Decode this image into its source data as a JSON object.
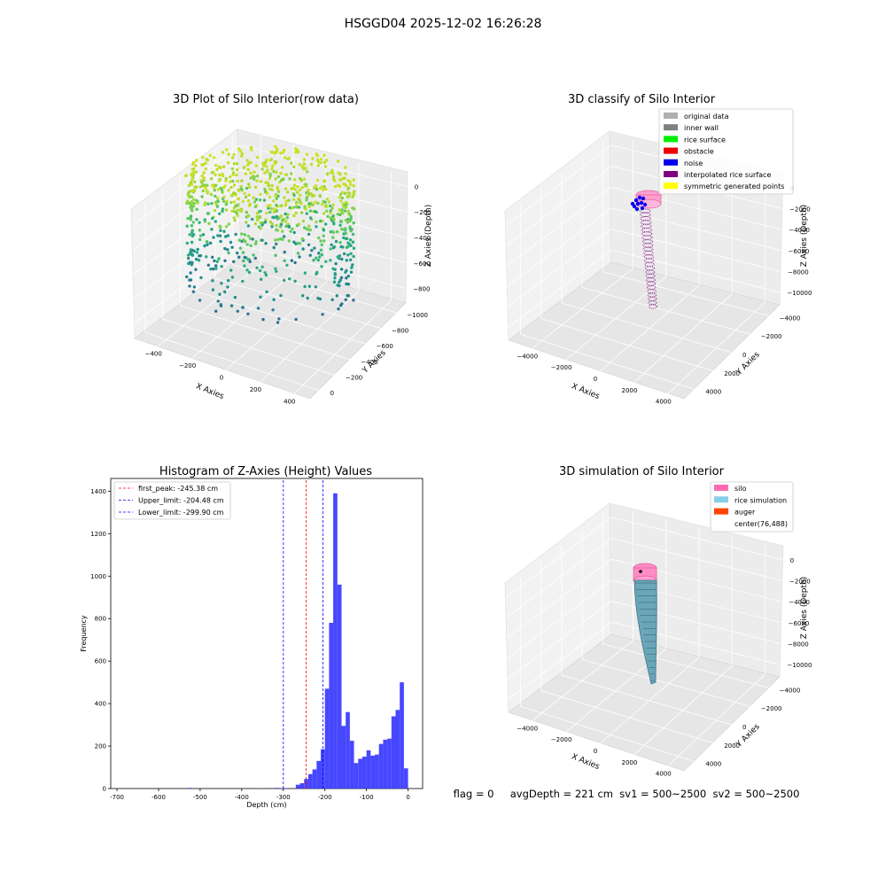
{
  "figure": {
    "suptitle": "HSGGD04 2025-12-02 16:26:28",
    "status_line": "flag = 0     avgDepth = 221 cm  sv1 = 500~2500  sv2 = 500~2500"
  },
  "chart_data": [
    {
      "type": "scatter",
      "projection": "3d",
      "title": "3D Plot of Silo Interior(row data)",
      "xlabel": "X Axies",
      "ylabel": "Y Axies",
      "zlabel": "Z Axies (Depth)",
      "x_ticks": [
        "−400",
        "−200",
        "0",
        "200",
        "400"
      ],
      "y_ticks": [
        "0",
        "−200",
        "−400",
        "−600",
        "−800",
        "−1000"
      ],
      "z_ticks": [
        "0",
        "−200",
        "−400",
        "−600",
        "−800"
      ],
      "xlim": [
        -500,
        500
      ],
      "ylim": [
        -1000,
        100
      ],
      "zlim": [
        -950,
        50
      ],
      "colormap": "viridis",
      "point_color_low": "#3b528b",
      "point_color_high": "#e0e31a",
      "points_description_surface_depth": -245
    },
    {
      "type": "scatter",
      "projection": "3d",
      "title": "3D classify of Silo Interior",
      "xlabel": "X Axies",
      "ylabel": "Y Axies",
      "zlabel": "Z Axies (Depth)",
      "x_ticks": [
        "−4000",
        "−2000",
        "0",
        "2000",
        "4000"
      ],
      "y_ticks": [
        "4000",
        "2000",
        "0",
        "−2000",
        "−4000"
      ],
      "z_ticks": [
        "0",
        "−2000",
        "−4000",
        "−6000",
        "−8000",
        "−10000"
      ],
      "xlim": [
        -5000,
        5000
      ],
      "ylim": [
        -5000,
        5000
      ],
      "zlim": [
        -10500,
        500
      ],
      "legend_position": "top-right",
      "legend": [
        {
          "label": "original data",
          "color": "#b0b0b0"
        },
        {
          "label": "inner wall",
          "color": "#808080"
        },
        {
          "label": "rice surface",
          "color": "#00ee00"
        },
        {
          "label": "obstacle",
          "color": "#ee0000"
        },
        {
          "label": "noise",
          "color": "#0000ee"
        },
        {
          "label": "interpolated rice surface",
          "color": "#800080"
        },
        {
          "label": "symmetric generated points",
          "color": "#ffff00"
        }
      ]
    },
    {
      "type": "histogram",
      "title": "Histogram of Z-Axies (Height) Values",
      "xlabel": "Depth (cm)",
      "ylabel": "Frequency",
      "xlim": [
        -715,
        35
      ],
      "ylim": [
        0,
        1460
      ],
      "x_ticks": [
        -700,
        -600,
        -500,
        -400,
        -300,
        -200,
        -100,
        0
      ],
      "y_ticks": [
        0,
        200,
        400,
        600,
        800,
        1000,
        1200,
        1400
      ],
      "bar_color": "#3333ff",
      "bin_width": 10,
      "bins": [
        {
          "x": -630,
          "count": 3
        },
        {
          "x": -460,
          "count": 1
        },
        {
          "x": -420,
          "count": 3
        },
        {
          "x": -400,
          "count": 2
        },
        {
          "x": -370,
          "count": 18
        },
        {
          "x": -360,
          "count": 25
        },
        {
          "x": -350,
          "count": 45
        },
        {
          "x": -340,
          "count": 68
        },
        {
          "x": -330,
          "count": 90
        },
        {
          "x": -320,
          "count": 130
        },
        {
          "x": -310,
          "count": 185
        },
        {
          "x": -300,
          "count": 470
        },
        {
          "x": -290,
          "count": 780
        },
        {
          "x": -280,
          "count": 1390
        },
        {
          "x": -270,
          "count": 960
        },
        {
          "x": -260,
          "count": 295
        },
        {
          "x": -250,
          "count": 360
        },
        {
          "x": -240,
          "count": 225
        },
        {
          "x": -230,
          "count": 120
        },
        {
          "x": -220,
          "count": 140
        },
        {
          "x": -210,
          "count": 150
        },
        {
          "x": -200,
          "count": 180
        },
        {
          "x": -190,
          "count": 155
        },
        {
          "x": -180,
          "count": 160
        },
        {
          "x": -170,
          "count": 210
        },
        {
          "x": -160,
          "count": 230
        },
        {
          "x": -150,
          "count": 235
        },
        {
          "x": -140,
          "count": 340
        },
        {
          "x": -130,
          "count": 370
        },
        {
          "x": -120,
          "count": 500
        },
        {
          "x": -110,
          "count": 95
        }
      ],
      "bin_offset": 110,
      "vlines": [
        {
          "label": "first_peak: -245.38 cm",
          "value": -245.38,
          "color": "#ff0000"
        },
        {
          "label": "Upper_limit: -204.48 cm",
          "value": -204.48,
          "color": "#0000ff"
        },
        {
          "label": "Lower_limit: -299.90 cm",
          "value": -299.9,
          "color": "#0000ff"
        }
      ],
      "legend_position": "top-left"
    },
    {
      "type": "surface",
      "projection": "3d",
      "title": "3D simulation of Silo Interior",
      "xlabel": "X Axies",
      "ylabel": "Y Axies",
      "zlabel": "Z Axies (Depth)",
      "x_ticks": [
        "−4000",
        "−2000",
        "0",
        "2000",
        "4000"
      ],
      "y_ticks": [
        "4000",
        "2000",
        "0",
        "−2000",
        "−4000"
      ],
      "z_ticks": [
        "0",
        "−2000",
        "−4000",
        "−6000",
        "−8000",
        "−10000"
      ],
      "xlim": [
        -5000,
        5000
      ],
      "ylim": [
        -5000,
        5000
      ],
      "zlim": [
        -10500,
        500
      ],
      "legend_position": "top-right",
      "legend": [
        {
          "label": "silo",
          "color": "#ff69b4"
        },
        {
          "label": "rice simulation",
          "color": "#87ceeb"
        },
        {
          "label": "auger",
          "color": "#ff4500"
        },
        {
          "label": "center(76,488)",
          "color": "#ffffff"
        }
      ]
    }
  ]
}
